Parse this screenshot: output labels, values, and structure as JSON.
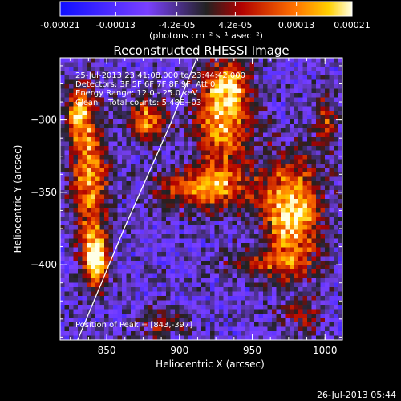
{
  "chart_data": {
    "type": "heatmap",
    "title": "Reconstructed RHESSI Image",
    "xlabel": "Heliocentric X (arcsec)",
    "ylabel": "Heliocentric Y (arcsec)",
    "xlim": [
      818,
      1012
    ],
    "ylim": [
      -452,
      -257
    ],
    "x_ticks": [
      850,
      900,
      950,
      1000
    ],
    "y_ticks": [
      -300,
      -350,
      -400
    ],
    "colorbar": {
      "label": "(photons cm⁻² s⁻¹ asec⁻²)",
      "range": [
        -0.00021,
        0.00021
      ],
      "tick_labels": [
        "-0.00021",
        "-0.00013",
        "-4.2e-05",
        "4.2e-05",
        "0.00013",
        "0.00021"
      ],
      "tick_values": [
        -0.00021,
        -0.00013,
        -4.2e-05,
        4.2e-05,
        0.00013,
        0.00021
      ]
    },
    "annotations": [
      "25-Jul-2013 23:41:08.000 to 23:44:42.000",
      "Detectors: 3F 5F 6F 7F 8F 9F, Att 0",
      "Energy Range: 12.0 - 25.0 keV",
      "Clean    Total counts: 5.48E+03"
    ],
    "peak_label": "Position of Peak = [843,-397]",
    "peak": [
      843,
      -397
    ],
    "limb_curve": {
      "x": [
        830,
        862,
        895,
        912
      ],
      "y": [
        -452,
        -375,
        -300,
        -257
      ]
    },
    "bright_sources": [
      {
        "x": 843,
        "y": -397,
        "sx": 6,
        "sy": 14,
        "amp": 1.0
      },
      {
        "x": 838,
        "y": -335,
        "sx": 9,
        "sy": 35,
        "amp": 0.75
      },
      {
        "x": 830,
        "y": -295,
        "sx": 5,
        "sy": 12,
        "amp": 0.65
      },
      {
        "x": 878,
        "y": -300,
        "sx": 9,
        "sy": 10,
        "amp": 0.75
      },
      {
        "x": 930,
        "y": -300,
        "sx": 14,
        "sy": 26,
        "amp": 0.8
      },
      {
        "x": 916,
        "y": -348,
        "sx": 22,
        "sy": 10,
        "amp": 0.7
      },
      {
        "x": 977,
        "y": -365,
        "sx": 14,
        "sy": 26,
        "amp": 0.95
      },
      {
        "x": 1000,
        "y": -300,
        "sx": 6,
        "sy": 14,
        "amp": 0.45
      },
      {
        "x": 960,
        "y": -400,
        "sx": 20,
        "sy": 6,
        "amp": 0.4
      },
      {
        "x": 985,
        "y": -435,
        "sx": 10,
        "sy": 8,
        "amp": 0.35
      },
      {
        "x": 887,
        "y": -440,
        "sx": 14,
        "sy": 8,
        "amp": 0.3
      },
      {
        "x": 935,
        "y": -275,
        "sx": 10,
        "sy": 10,
        "amp": 0.4
      }
    ]
  },
  "footer": {
    "timestamp": "26-Jul-2013 05:44"
  }
}
